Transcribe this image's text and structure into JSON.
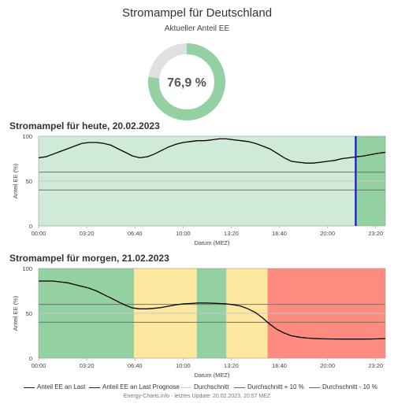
{
  "header": {
    "title": "Stromampel für Deutschland",
    "subtitle": "Aktueller Anteil EE"
  },
  "gauge": {
    "value_label": "76,9 %",
    "value": 76.9,
    "fill_color": "#93d0a2",
    "rest_color": "#e0e0e0"
  },
  "colors": {
    "green": "#93d0a2",
    "green_light": "#cfead6",
    "yellow": "#fde89e",
    "red": "#fd8b80",
    "now_marker": "#1414d2",
    "reference_line": "#777777",
    "curve": "#000000"
  },
  "chart_data": [
    {
      "type": "line",
      "title": "Stromampel für heute, 20.02.2023",
      "xlabel": "Datum (MEZ)",
      "ylabel": "Anteil EE (%)",
      "xlim": [
        0,
        24
      ],
      "ylim": [
        0,
        100
      ],
      "x_ticks": [
        "00:00",
        "03:20",
        "06:40",
        "10:00",
        "13:20",
        "16:40",
        "20:00",
        "23:20"
      ],
      "y_ticks": [
        "0",
        "50",
        "100"
      ],
      "reference_lines": {
        "durchschnitt": 50,
        "durchschnitt_plus_10": 60,
        "durchschnitt_minus_10": 40
      },
      "now_hour": 21.95,
      "bands": [
        {
          "from": 21.95,
          "to": 24,
          "color": "green"
        }
      ],
      "past_band_color": "green_light",
      "series": [
        {
          "name": "Anteil EE an Last",
          "x": [
            0,
            0.5,
            1,
            1.5,
            2,
            2.5,
            3,
            3.5,
            4,
            4.5,
            5,
            5.5,
            6,
            6.5,
            7,
            7.5,
            8,
            8.5,
            9,
            9.5,
            10,
            10.5,
            11,
            11.5,
            12,
            12.5,
            13,
            13.5,
            14,
            14.5,
            15,
            15.5,
            16,
            16.5,
            17,
            17.5,
            18,
            18.5,
            19,
            19.5,
            20,
            20.5,
            21,
            21.5,
            22
          ],
          "y": [
            76,
            77,
            80,
            83,
            86,
            89,
            92,
            93,
            93,
            92,
            90,
            86,
            82,
            78,
            76,
            77,
            80,
            84,
            88,
            91,
            93,
            94,
            95,
            95,
            96,
            97,
            97,
            96,
            95,
            94,
            92,
            89,
            86,
            81,
            76,
            72,
            71,
            70,
            70,
            71,
            72,
            73,
            75,
            76,
            77
          ]
        },
        {
          "name": "Anteil EE an Last Prognose",
          "x": [
            22,
            22.5,
            23,
            23.5,
            24
          ],
          "y": [
            77,
            78,
            79.5,
            81,
            82
          ]
        }
      ]
    },
    {
      "type": "line",
      "title": "Stromampel für morgen, 21.02.2023",
      "xlabel": "Datum (MEZ)",
      "ylabel": "Anteil EE (%)",
      "xlim": [
        0,
        24
      ],
      "ylim": [
        0,
        100
      ],
      "x_ticks": [
        "00:00",
        "03:20",
        "06:40",
        "10:00",
        "13:20",
        "16:40",
        "20:00",
        "23:20"
      ],
      "y_ticks": [
        "0",
        "50",
        "100"
      ],
      "reference_lines": {
        "durchschnitt": 50,
        "durchschnitt_plus_10": 60,
        "durchschnitt_minus_10": 40
      },
      "bands": [
        {
          "from": 0,
          "to": 6.6,
          "color": "green"
        },
        {
          "from": 6.6,
          "to": 10.95,
          "color": "yellow"
        },
        {
          "from": 10.95,
          "to": 13,
          "color": "green"
        },
        {
          "from": 13,
          "to": 15.85,
          "color": "yellow"
        },
        {
          "from": 15.85,
          "to": 24,
          "color": "red"
        }
      ],
      "series": [
        {
          "name": "Anteil EE an Last Prognose",
          "x": [
            0,
            0.5,
            1,
            1.5,
            2,
            2.5,
            3,
            3.5,
            4,
            4.5,
            5,
            5.5,
            6,
            6.5,
            7,
            7.5,
            8,
            8.5,
            9,
            9.5,
            10,
            10.5,
            11,
            11.5,
            12,
            12.5,
            13,
            13.5,
            14,
            14.5,
            15,
            15.5,
            16,
            16.5,
            17,
            17.5,
            18,
            18.5,
            19,
            19.5,
            20,
            20.5,
            21,
            21.5,
            22,
            22.5,
            23,
            23.5,
            24
          ],
          "y": [
            86,
            86,
            86,
            85,
            84,
            82,
            80,
            78,
            75,
            71,
            67,
            63,
            59,
            56,
            55,
            55,
            55.5,
            56.5,
            58,
            59.5,
            60.5,
            61,
            61.5,
            61.5,
            61.3,
            61,
            60.5,
            59.5,
            58,
            55,
            51,
            45,
            38,
            32,
            28,
            25,
            23.5,
            22.5,
            22,
            21.7,
            21.5,
            21.4,
            21.3,
            21.3,
            21.3,
            21.3,
            21.4,
            21.6,
            21.8
          ]
        }
      ]
    }
  ],
  "legend": [
    {
      "label": "Anteil EE an Last",
      "color": "#222222",
      "width": 1.6
    },
    {
      "label": "Anteil EE an Last Prognose",
      "color": "#222222",
      "width": 1.6
    },
    {
      "label": "Durchschnitt",
      "color": "#cccccc",
      "width": 1.2
    },
    {
      "label": "Durchschnitt + 10 %",
      "color": "#666666",
      "width": 1.2
    },
    {
      "label": "Durchschnitt - 10 %",
      "color": "#666666",
      "width": 1.2
    }
  ],
  "footer": "Energy-Charts.info - letztes Update: 20.02.2023, 20:57 MEZ"
}
